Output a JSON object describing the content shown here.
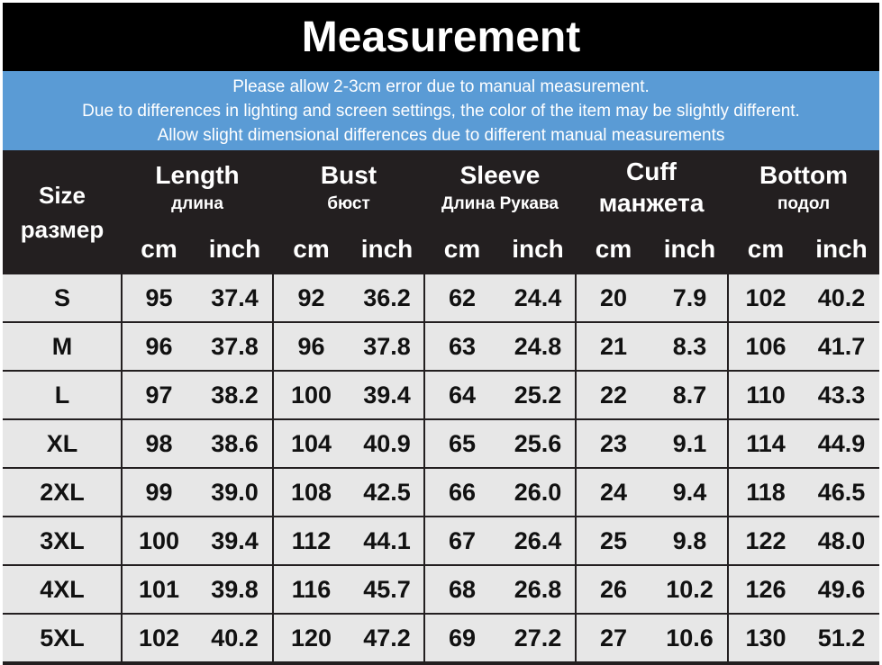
{
  "title": "Measurement",
  "notice": [
    "Please allow 2-3cm error due to manual measurement.",
    "Due to differences in lighting and screen settings, the color of the item may be slightly different.",
    "Allow slight dimensional differences due to different manual measurements"
  ],
  "header": {
    "size": [
      "Size",
      "размер"
    ],
    "groups": [
      {
        "name": "Length",
        "sub": "длина"
      },
      {
        "name": "Bust",
        "sub": "бюст"
      },
      {
        "name": "Sleeve",
        "sub": "Длина Рукава"
      },
      {
        "name": "Cuff",
        "sub": "манжета"
      },
      {
        "name": "Bottom",
        "sub": "подол"
      }
    ],
    "units": [
      "cm",
      "inch"
    ]
  },
  "rows": [
    [
      "S",
      "95",
      "37.4",
      "92",
      "36.2",
      "62",
      "24.4",
      "20",
      "7.9",
      "102",
      "40.2"
    ],
    [
      "M",
      "96",
      "37.8",
      "96",
      "37.8",
      "63",
      "24.8",
      "21",
      "8.3",
      "106",
      "41.7"
    ],
    [
      "L",
      "97",
      "38.2",
      "100",
      "39.4",
      "64",
      "25.2",
      "22",
      "8.7",
      "110",
      "43.3"
    ],
    [
      "XL",
      "98",
      "38.6",
      "104",
      "40.9",
      "65",
      "25.6",
      "23",
      "9.1",
      "114",
      "44.9"
    ],
    [
      "2XL",
      "99",
      "39.0",
      "108",
      "42.5",
      "66",
      "26.0",
      "24",
      "9.4",
      "118",
      "46.5"
    ],
    [
      "3XL",
      "100",
      "39.4",
      "112",
      "44.1",
      "67",
      "26.4",
      "25",
      "9.8",
      "122",
      "48.0"
    ],
    [
      "4XL",
      "101",
      "39.8",
      "116",
      "45.7",
      "68",
      "26.8",
      "26",
      "10.2",
      "126",
      "49.6"
    ],
    [
      "5XL",
      "102",
      "40.2",
      "120",
      "47.2",
      "69",
      "27.2",
      "27",
      "10.6",
      "130",
      "51.2"
    ]
  ],
  "colors": {
    "title_bg": "#000000",
    "notice_bg": "#5a9bd5",
    "header_bg": "#231f20",
    "row_bg": "#e7e7e7",
    "text_light": "#ffffff",
    "text_dark": "#111111"
  }
}
